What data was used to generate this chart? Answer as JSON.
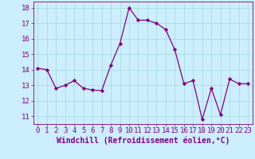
{
  "xlabel": "Windchill (Refroidissement éolien,°C)",
  "x_values": [
    0,
    1,
    2,
    3,
    4,
    5,
    6,
    7,
    8,
    9,
    10,
    11,
    12,
    13,
    14,
    15,
    16,
    17,
    18,
    19,
    20,
    21,
    22,
    23
  ],
  "y_values": [
    14.1,
    14.0,
    12.8,
    13.0,
    13.3,
    12.8,
    12.7,
    12.65,
    14.3,
    15.7,
    18.0,
    17.2,
    17.2,
    17.0,
    16.6,
    15.3,
    13.1,
    13.3,
    10.8,
    12.8,
    11.1,
    13.4,
    13.1,
    13.1
  ],
  "line_color": "#800080",
  "marker": "D",
  "marker_size": 2.2,
  "bg_color": "#cceeff",
  "grid_color": "#aadddd",
  "ylim_min": 10.5,
  "ylim_max": 18.4,
  "xlim_min": -0.5,
  "xlim_max": 23.5,
  "yticks": [
    11,
    12,
    13,
    14,
    15,
    16,
    17,
    18
  ],
  "xticks": [
    0,
    1,
    2,
    3,
    4,
    5,
    6,
    7,
    8,
    9,
    10,
    11,
    12,
    13,
    14,
    15,
    16,
    17,
    18,
    19,
    20,
    21,
    22,
    23
  ],
  "tick_fontsize": 6.5,
  "xlabel_fontsize": 7.0,
  "line_width": 0.9
}
